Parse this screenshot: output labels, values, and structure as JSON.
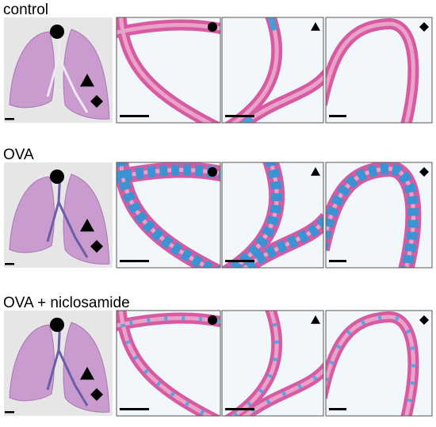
{
  "rows": [
    {
      "label": "control"
    },
    {
      "label": "OVA"
    },
    {
      "label": "OVA + niclosamide"
    }
  ]
}
